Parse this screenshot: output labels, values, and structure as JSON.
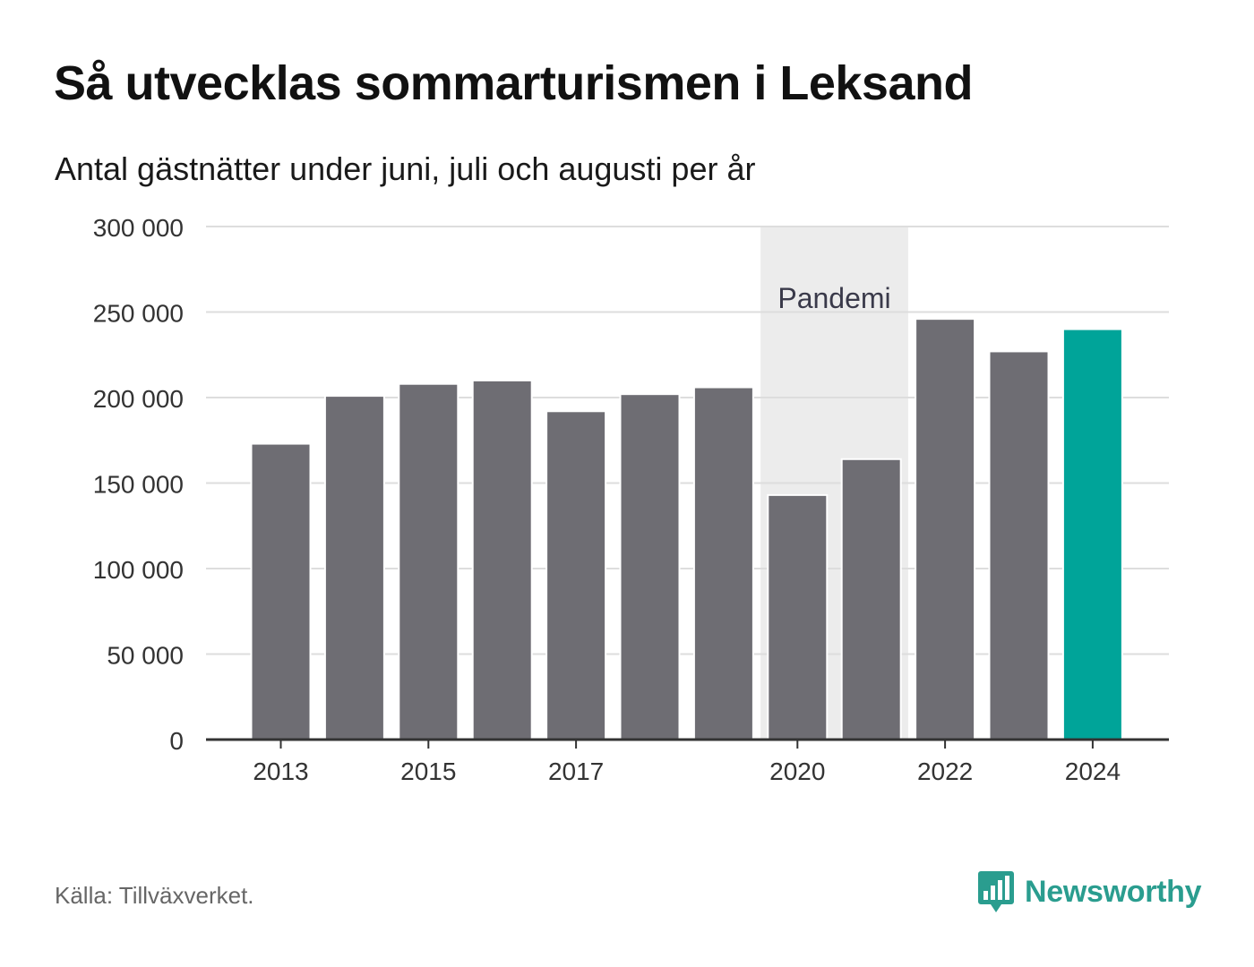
{
  "header": {
    "title": "Så utvecklas sommarturismen i Leksand",
    "subtitle": "Antal gästnätter under juni, juli och augusti per år"
  },
  "footer": {
    "source": "Källa: Tillväxverket.",
    "brand": "Newsworthy",
    "brand_icon": "bar-chart-speech-bubble-icon"
  },
  "colors": {
    "bar": "#6e6d73",
    "highlight": "#00a499",
    "pandemic_band": "#ececec",
    "grid": "#dddddd",
    "axis": "#333333",
    "brand": "#2a9d8f"
  },
  "chart_data": {
    "type": "bar",
    "title": "",
    "xlabel": "",
    "ylabel": "",
    "ylim": [
      0,
      300000
    ],
    "yticks": [
      0,
      50000,
      100000,
      150000,
      200000,
      250000,
      300000
    ],
    "ytick_labels": [
      "0",
      "50 000",
      "100 000",
      "150 000",
      "200 000",
      "250 000",
      "300 000"
    ],
    "categories": [
      "2013",
      "2014",
      "2015",
      "2016",
      "2017",
      "2018",
      "2019",
      "2020",
      "2021",
      "2022",
      "2023",
      "2024"
    ],
    "xtick_labels": [
      "2013",
      "2015",
      "2017",
      "2020",
      "2022",
      "2024"
    ],
    "values": [
      173000,
      201000,
      208000,
      210000,
      192000,
      202000,
      206000,
      143000,
      164000,
      246000,
      227000,
      240000
    ],
    "highlight_category": "2024",
    "grid": true,
    "annotation": {
      "label": "Pandemi",
      "from": "2020",
      "to": "2021"
    }
  }
}
